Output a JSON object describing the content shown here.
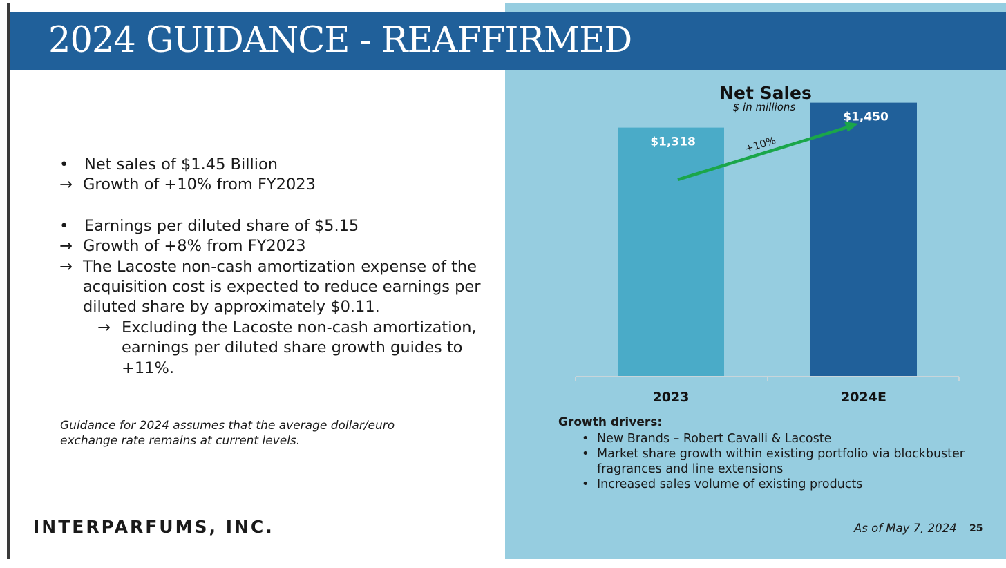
{
  "slide": {
    "title": "2024 GUIDANCE - REAFFIRMED",
    "page_number": "25",
    "as_of": "As of May 7, 2024",
    "logo_text": "INTERPARFUMS, INC.",
    "footnote": "Guidance for 2024 assumes that the average dollar/euro exchange rate remains at current levels."
  },
  "bullets": [
    {
      "text": "Net sales of $1.45 Billion",
      "subs": [
        {
          "text": "Growth of +10% from FY2023",
          "subs": []
        }
      ]
    },
    {
      "text": "Earnings per diluted share of $5.15",
      "subs": [
        {
          "text": "Growth of +8% from FY2023",
          "subs": []
        },
        {
          "text": "The Lacoste non-cash amortization expense of the acquisition cost is expected to reduce earnings per diluted share by approximately $0.11.",
          "subs": [
            {
              "text": "Excluding the Lacoste non-cash amortization, earnings per diluted share growth guides to +11%."
            }
          ]
        }
      ]
    }
  ],
  "growth_drivers": {
    "heading": "Growth drivers:",
    "items": [
      "New Brands – Robert Cavalli & Lacoste",
      "Market share growth within existing portfolio via blockbuster fragrances and line extensions",
      "Increased sales volume of existing products"
    ]
  },
  "chart_data": {
    "type": "bar",
    "title": "Net Sales",
    "subtitle": "$ in millions",
    "categories": [
      "2023",
      "2024E"
    ],
    "values": [
      1318,
      1450
    ],
    "data_labels": [
      "$1,318",
      "$1,450"
    ],
    "bar_colors": [
      "#4aabc8",
      "#20609a"
    ],
    "ylim": [
      0,
      1500
    ],
    "grid": false,
    "annotation": {
      "text": "+10%",
      "color": "#1aa64a"
    }
  },
  "colors": {
    "title_bar": "#20609a",
    "panel": "#96cde0",
    "arrow": "#1aa64a"
  }
}
